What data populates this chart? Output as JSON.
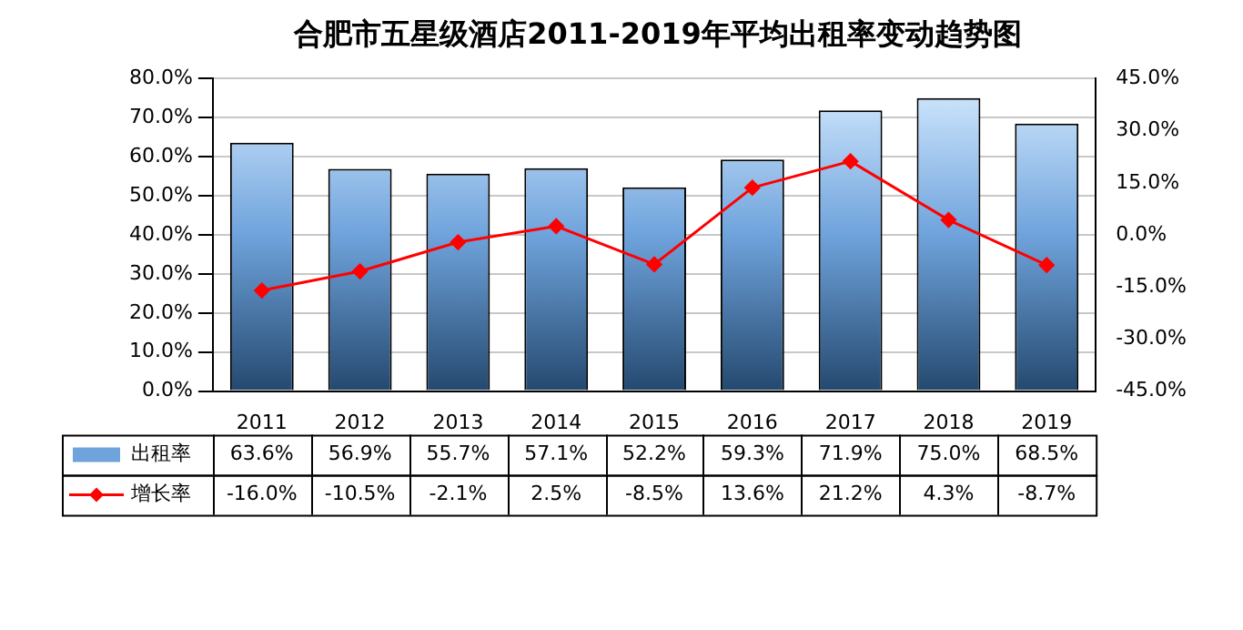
{
  "chart_data": {
    "type": "bar",
    "title": "合肥市五星级酒店2011-2019年平均出租率变动趋势图",
    "categories": [
      "2011",
      "2012",
      "2013",
      "2014",
      "2015",
      "2016",
      "2017",
      "2018",
      "2019"
    ],
    "series": [
      {
        "name": "出租率",
        "color": "#6fa3dc",
        "values": [
          63.6,
          56.9,
          55.7,
          57.1,
          52.2,
          59.3,
          71.9,
          75.0,
          68.5
        ],
        "value_labels": [
          "63.6%",
          "56.9%",
          "55.7%",
          "57.1%",
          "52.2%",
          "59.3%",
          "71.9%",
          "75.0%",
          "68.5%"
        ]
      },
      {
        "name": "增长率",
        "type": "line",
        "axis": "y2",
        "color": "#ff0000",
        "marker": "diamond",
        "values": [
          -16.0,
          -10.5,
          -2.1,
          2.5,
          -8.5,
          13.6,
          21.2,
          4.3,
          -8.7
        ],
        "value_labels": [
          "-16.0%",
          "-10.5%",
          "-2.1%",
          "2.5%",
          "-8.5%",
          "13.6%",
          "21.2%",
          "4.3%",
          "-8.7%"
        ]
      }
    ],
    "ylim": [
      0,
      80
    ],
    "yticks": [
      {
        "value": 0,
        "label": "0.0%"
      },
      {
        "value": 10,
        "label": "10.0%"
      },
      {
        "value": 20,
        "label": "20.0%"
      },
      {
        "value": 30,
        "label": "30.0%"
      },
      {
        "value": 40,
        "label": "40.0%"
      },
      {
        "value": 50,
        "label": "50.0%"
      },
      {
        "value": 60,
        "label": "60.0%"
      },
      {
        "value": 70,
        "label": "70.0%"
      },
      {
        "value": 80,
        "label": "80.0%"
      }
    ],
    "y2lim": [
      -45,
      45
    ],
    "y2ticks": [
      {
        "value": -45,
        "label": "-45.0%"
      },
      {
        "value": -30,
        "label": "-30.0%"
      },
      {
        "value": -15,
        "label": "-15.0%"
      },
      {
        "value": 0,
        "label": "0.0%"
      },
      {
        "value": 15,
        "label": "15.0%"
      },
      {
        "value": 30,
        "label": "30.0%"
      },
      {
        "value": 45,
        "label": "45.0%"
      }
    ],
    "grid": "y",
    "legend": "bottom"
  }
}
